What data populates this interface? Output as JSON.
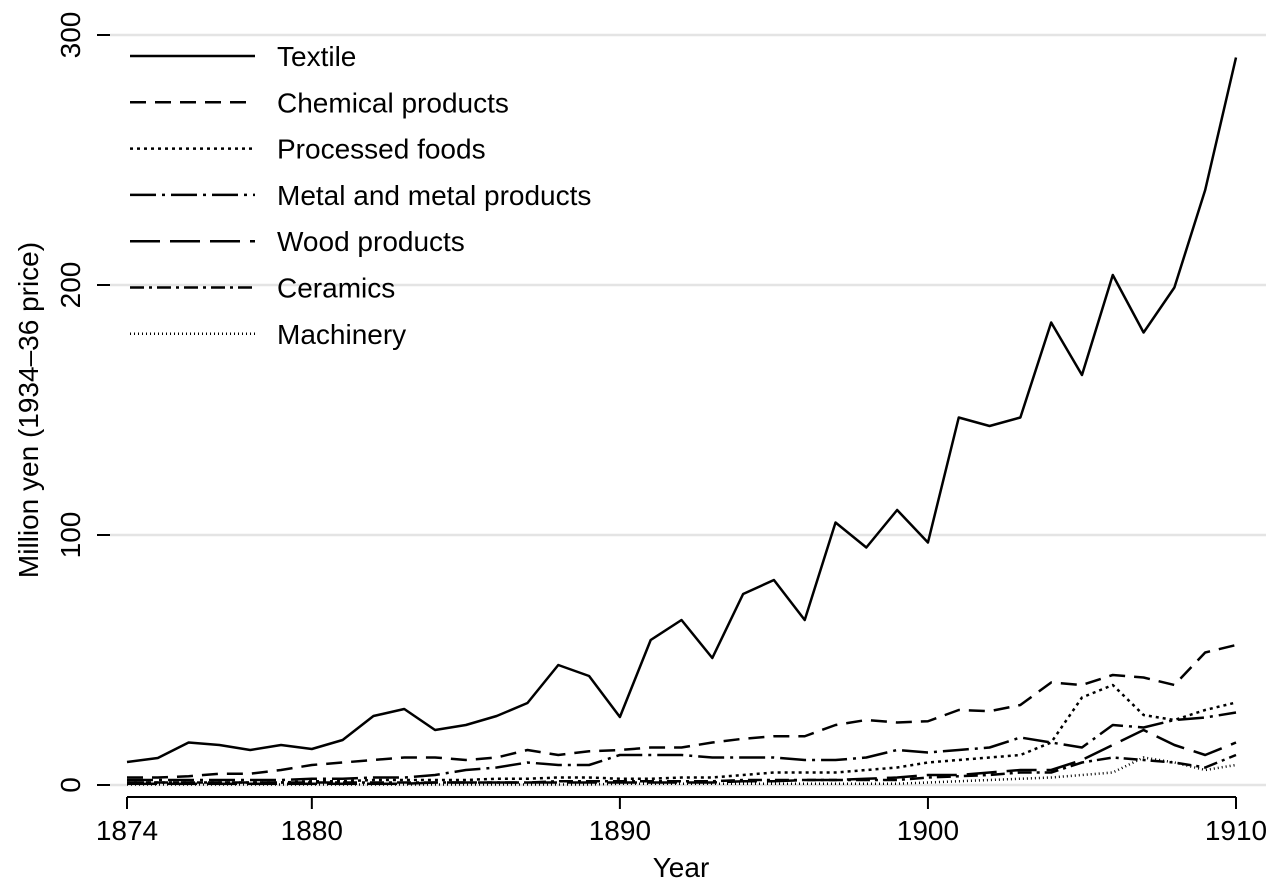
{
  "chart_data": {
    "type": "line",
    "x_label": "Year",
    "y_label": "Million yen (1934–36 price)",
    "x": [
      1874,
      1875,
      1876,
      1877,
      1878,
      1879,
      1880,
      1881,
      1882,
      1883,
      1884,
      1885,
      1886,
      1887,
      1888,
      1889,
      1890,
      1891,
      1892,
      1893,
      1894,
      1895,
      1896,
      1897,
      1898,
      1899,
      1900,
      1901,
      1902,
      1903,
      1904,
      1905,
      1906,
      1907,
      1908,
      1909,
      1910
    ],
    "xlim": [
      1874,
      1910
    ],
    "xticks": [
      1874,
      1880,
      1890,
      1900,
      1910
    ],
    "ylim": [
      0,
      300
    ],
    "yticks": [
      0,
      100,
      200,
      300
    ],
    "grid": true,
    "legend": "top-left",
    "series": [
      {
        "name": "Textile",
        "color": "#000000",
        "dash": "none",
        "values": [
          9.2,
          10.8,
          17,
          16,
          14,
          16,
          14.4,
          18,
          27.6,
          30.4,
          22,
          24,
          27.6,
          32.8,
          48,
          43.6,
          27.2,
          58,
          66,
          50.8,
          76.4,
          82,
          66,
          105,
          95,
          110,
          97,
          147,
          143.6,
          147,
          185,
          164,
          204,
          181,
          199,
          238,
          291
        ]
      },
      {
        "name": "Chemical products",
        "color": "#000000",
        "dash": "16,9",
        "values": [
          3,
          3,
          3.5,
          4.5,
          4.5,
          6,
          8,
          9,
          10,
          11,
          11,
          10,
          11,
          14,
          12,
          13.5,
          14,
          15,
          15,
          17,
          18.5,
          19.5,
          19.5,
          24,
          26,
          25,
          25.5,
          30,
          29.5,
          32,
          41,
          40,
          44,
          43,
          40,
          53,
          56
        ]
      },
      {
        "name": "Processed foods",
        "color": "#000000",
        "dash": "3,4",
        "values": [
          1,
          1,
          1,
          1,
          1,
          1,
          1.5,
          1.5,
          2,
          2,
          2,
          2,
          2.5,
          2.5,
          3,
          3,
          2.5,
          2.5,
          3,
          3,
          4,
          5,
          5,
          5,
          6,
          7,
          9,
          10,
          11,
          12,
          17,
          35,
          40,
          28,
          26,
          30,
          33
        ]
      },
      {
        "name": "Metal and metal products",
        "color": "#000000",
        "dash": "26,6,3,6",
        "values": [
          2,
          2,
          2,
          2,
          2,
          2,
          2.5,
          2.5,
          3,
          3,
          4,
          6,
          7,
          9,
          8,
          8,
          12,
          12,
          12,
          11,
          11,
          11,
          10,
          10,
          11,
          14,
          13,
          14,
          15,
          19,
          17,
          15,
          24,
          23,
          26,
          27,
          29
        ]
      },
      {
        "name": "Wood products",
        "color": "#000000",
        "dash": "30,10",
        "values": [
          0.5,
          0.5,
          0.5,
          0.5,
          0.5,
          0.5,
          0.5,
          0.5,
          0.5,
          0.5,
          1,
          1,
          1,
          1,
          1,
          1,
          1,
          1,
          1,
          1,
          1.5,
          1.5,
          2,
          2,
          2.5,
          3,
          4,
          4,
          5,
          6,
          6,
          10,
          16,
          22,
          16,
          12,
          17
        ]
      },
      {
        "name": "Ceramics",
        "color": "#000000",
        "dash": "14,5,3,5",
        "values": [
          1,
          1,
          1,
          1,
          1,
          1,
          1,
          1,
          1,
          1,
          1,
          1,
          1,
          1,
          1.5,
          1.5,
          1.5,
          1.5,
          1.5,
          1.5,
          2,
          2,
          2,
          2,
          2,
          2,
          3,
          3.5,
          4,
          5,
          5,
          9,
          11,
          10,
          9,
          7,
          12
        ]
      },
      {
        "name": "Machinery",
        "color": "#000000",
        "dash": "1,3",
        "values": [
          0.2,
          0.2,
          0.2,
          0.2,
          0.2,
          0.2,
          0.2,
          0.2,
          0.2,
          0.2,
          0.2,
          0.2,
          0.2,
          0.2,
          0.2,
          0.2,
          0.5,
          0.5,
          0.5,
          0.5,
          0.5,
          0.5,
          0.5,
          0.5,
          0.5,
          0.5,
          1,
          1.5,
          2,
          2.5,
          3,
          4,
          5,
          11,
          9,
          6,
          8
        ]
      }
    ]
  }
}
